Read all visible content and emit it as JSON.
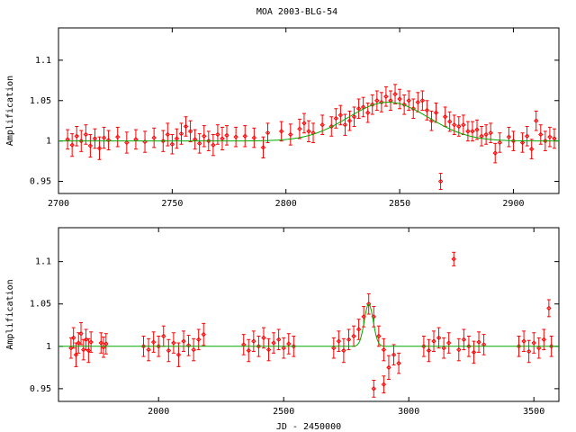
{
  "title": "MOA 2003-BLG-54",
  "colors": {
    "data": "#ff0000",
    "model": "#00aa00",
    "frame": "#000000"
  },
  "chart_data": [
    {
      "type": "scatter",
      "ylabel": "Amplification",
      "xlabel": "",
      "xlim": [
        2700,
        2920
      ],
      "ylim": [
        0.935,
        1.14
      ],
      "xticks": [
        2700,
        2750,
        2800,
        2850,
        2900
      ],
      "yticks": [
        0.95,
        1,
        1.05,
        1.1
      ],
      "series": [
        {
          "kind": "points_with_errorbars",
          "points": [
            [
              2704,
              1.002,
              0.012
            ],
            [
              2706,
              0.995,
              0.014
            ],
            [
              2708,
              1.006,
              0.012
            ],
            [
              2710,
              1.0,
              0.013
            ],
            [
              2712,
              1.008,
              0.012
            ],
            [
              2714,
              0.994,
              0.014
            ],
            [
              2716,
              1.003,
              0.012
            ],
            [
              2718,
              0.991,
              0.014
            ],
            [
              2720,
              1.004,
              0.013
            ],
            [
              2722,
              1.001,
              0.012
            ],
            [
              2726,
              1.005,
              0.012
            ],
            [
              2730,
              0.998,
              0.013
            ],
            [
              2734,
              1.002,
              0.012
            ],
            [
              2738,
              0.999,
              0.013
            ],
            [
              2742,
              1.004,
              0.012
            ],
            [
              2746,
              1.0,
              0.013
            ],
            [
              2748,
              1.008,
              0.014
            ],
            [
              2750,
              0.996,
              0.012
            ],
            [
              2752,
              1.003,
              0.012
            ],
            [
              2754,
              1.009,
              0.013
            ],
            [
              2756,
              1.018,
              0.012
            ],
            [
              2758,
              1.012,
              0.013
            ],
            [
              2760,
              1.002,
              0.012
            ],
            [
              2762,
              0.997,
              0.012
            ],
            [
              2764,
              1.006,
              0.013
            ],
            [
              2766,
              1.0,
              0.012
            ],
            [
              2768,
              0.995,
              0.013
            ],
            [
              2770,
              1.008,
              0.012
            ],
            [
              2772,
              1.003,
              0.014
            ],
            [
              2774,
              1.007,
              0.012
            ],
            [
              2778,
              1.005,
              0.012
            ],
            [
              2782,
              1.006,
              0.013
            ],
            [
              2786,
              1.004,
              0.012
            ],
            [
              2790,
              0.992,
              0.013
            ],
            [
              2792,
              1.01,
              0.012
            ],
            [
              2798,
              1.012,
              0.012
            ],
            [
              2802,
              1.008,
              0.013
            ],
            [
              2806,
              1.015,
              0.012
            ],
            [
              2808,
              1.022,
              0.012
            ],
            [
              2810,
              1.012,
              0.013
            ],
            [
              2812,
              1.01,
              0.012
            ],
            [
              2816,
              1.02,
              0.012
            ],
            [
              2820,
              1.018,
              0.012
            ],
            [
              2822,
              1.028,
              0.012
            ],
            [
              2824,
              1.032,
              0.012
            ],
            [
              2826,
              1.02,
              0.013
            ],
            [
              2828,
              1.025,
              0.012
            ],
            [
              2830,
              1.03,
              0.012
            ],
            [
              2832,
              1.04,
              0.012
            ],
            [
              2834,
              1.042,
              0.012
            ],
            [
              2836,
              1.035,
              0.012
            ],
            [
              2838,
              1.045,
              0.012
            ],
            [
              2840,
              1.05,
              0.012
            ],
            [
              2842,
              1.048,
              0.012
            ],
            [
              2844,
              1.055,
              0.012
            ],
            [
              2846,
              1.05,
              0.012
            ],
            [
              2848,
              1.058,
              0.012
            ],
            [
              2850,
              1.052,
              0.012
            ],
            [
              2852,
              1.045,
              0.012
            ],
            [
              2854,
              1.05,
              0.012
            ],
            [
              2856,
              1.04,
              0.012
            ],
            [
              2858,
              1.048,
              0.012
            ],
            [
              2860,
              1.05,
              0.012
            ],
            [
              2862,
              1.038,
              0.012
            ],
            [
              2864,
              1.025,
              0.012
            ],
            [
              2866,
              1.035,
              0.012
            ],
            [
              2868,
              0.95,
              0.01
            ],
            [
              2870,
              1.03,
              0.012
            ],
            [
              2872,
              1.024,
              0.012
            ],
            [
              2874,
              1.02,
              0.012
            ],
            [
              2876,
              1.018,
              0.012
            ],
            [
              2878,
              1.02,
              0.012
            ],
            [
              2880,
              1.012,
              0.012
            ],
            [
              2882,
              1.012,
              0.012
            ],
            [
              2884,
              1.014,
              0.012
            ],
            [
              2886,
              1.006,
              0.012
            ],
            [
              2888,
              1.008,
              0.012
            ],
            [
              2890,
              1.01,
              0.012
            ],
            [
              2892,
              0.985,
              0.012
            ],
            [
              2894,
              0.998,
              0.012
            ],
            [
              2898,
              1.005,
              0.012
            ],
            [
              2900,
              1.0,
              0.012
            ],
            [
              2904,
              0.998,
              0.012
            ],
            [
              2906,
              1.006,
              0.012
            ],
            [
              2908,
              0.99,
              0.012
            ],
            [
              2910,
              1.025,
              0.012
            ],
            [
              2912,
              1.008,
              0.012
            ],
            [
              2914,
              1.0,
              0.012
            ],
            [
              2916,
              1.005,
              0.012
            ],
            [
              2918,
              1.003,
              0.012
            ]
          ]
        },
        {
          "kind": "model_curve",
          "baseline": 1.0,
          "peak_amplification": 1.048,
          "t0": 2845,
          "width": 25
        }
      ]
    },
    {
      "type": "scatter",
      "ylabel": "Amplification",
      "xlabel": "JD - 2450000",
      "xlim": [
        1600,
        3600
      ],
      "ylim": [
        0.935,
        1.14
      ],
      "xticks": [
        2000,
        2500,
        3000,
        3500
      ],
      "yticks": [
        0.95,
        1,
        1.05,
        1.1
      ],
      "series": [
        {
          "kind": "points_with_errorbars",
          "points": [
            [
              1650,
              0.998,
              0.012
            ],
            [
              1660,
              1.01,
              0.012
            ],
            [
              1670,
              0.99,
              0.014
            ],
            [
              1680,
              1.004,
              0.012
            ],
            [
              1690,
              1.015,
              0.013
            ],
            [
              1700,
              0.996,
              0.012
            ],
            [
              1710,
              1.008,
              0.012
            ],
            [
              1720,
              0.995,
              0.014
            ],
            [
              1730,
              1.005,
              0.012
            ],
            [
              1770,
              1.004,
              0.012
            ],
            [
              1780,
              0.999,
              0.012
            ],
            [
              1790,
              1.003,
              0.012
            ],
            [
              1940,
              1.0,
              0.012
            ],
            [
              1960,
              0.996,
              0.013
            ],
            [
              1980,
              1.005,
              0.012
            ],
            [
              2000,
              1.0,
              0.012
            ],
            [
              2020,
              1.012,
              0.012
            ],
            [
              2040,
              0.995,
              0.013
            ],
            [
              2060,
              1.004,
              0.012
            ],
            [
              2080,
              0.99,
              0.014
            ],
            [
              2100,
              1.006,
              0.012
            ],
            [
              2120,
              1.001,
              0.012
            ],
            [
              2140,
              0.996,
              0.013
            ],
            [
              2160,
              1.008,
              0.012
            ],
            [
              2180,
              1.014,
              0.013
            ],
            [
              2340,
              1.002,
              0.012
            ],
            [
              2360,
              0.995,
              0.013
            ],
            [
              2380,
              1.006,
              0.012
            ],
            [
              2400,
              1.0,
              0.012
            ],
            [
              2420,
              1.01,
              0.012
            ],
            [
              2440,
              0.996,
              0.013
            ],
            [
              2460,
              1.004,
              0.012
            ],
            [
              2480,
              1.008,
              0.012
            ],
            [
              2500,
              0.998,
              0.012
            ],
            [
              2520,
              1.003,
              0.012
            ],
            [
              2540,
              1.0,
              0.012
            ],
            [
              2700,
              0.998,
              0.012
            ],
            [
              2720,
              1.006,
              0.012
            ],
            [
              2740,
              0.995,
              0.014
            ],
            [
              2760,
              1.008,
              0.012
            ],
            [
              2780,
              1.012,
              0.012
            ],
            [
              2800,
              1.02,
              0.012
            ],
            [
              2820,
              1.035,
              0.012
            ],
            [
              2840,
              1.05,
              0.012
            ],
            [
              2860,
              1.035,
              0.012
            ],
            [
              2880,
              1.012,
              0.012
            ],
            [
              2900,
              0.996,
              0.013
            ],
            [
              2920,
              0.975,
              0.014
            ],
            [
              2940,
              0.99,
              0.012
            ],
            [
              2960,
              0.98,
              0.012
            ],
            [
              2860,
              0.95,
              0.01
            ],
            [
              2900,
              0.955,
              0.01
            ],
            [
              3060,
              1.0,
              0.012
            ],
            [
              3080,
              0.995,
              0.013
            ],
            [
              3100,
              1.006,
              0.012
            ],
            [
              3120,
              1.01,
              0.012
            ],
            [
              3140,
              0.998,
              0.012
            ],
            [
              3160,
              1.004,
              0.012
            ],
            [
              3180,
              1.103,
              0.008
            ],
            [
              3200,
              0.996,
              0.013
            ],
            [
              3220,
              1.008,
              0.012
            ],
            [
              3240,
              1.0,
              0.012
            ],
            [
              3260,
              0.993,
              0.013
            ],
            [
              3280,
              1.005,
              0.012
            ],
            [
              3300,
              1.002,
              0.012
            ],
            [
              3440,
              1.0,
              0.012
            ],
            [
              3460,
              1.006,
              0.012
            ],
            [
              3480,
              0.994,
              0.013
            ],
            [
              3500,
              1.004,
              0.012
            ],
            [
              3520,
              0.998,
              0.012
            ],
            [
              3540,
              1.008,
              0.012
            ],
            [
              3560,
              1.045,
              0.01
            ],
            [
              3570,
              1.0,
              0.012
            ]
          ]
        },
        {
          "kind": "model_curve",
          "baseline": 1.0,
          "peak_amplification": 1.05,
          "t0": 2840,
          "width": 25
        }
      ]
    }
  ]
}
